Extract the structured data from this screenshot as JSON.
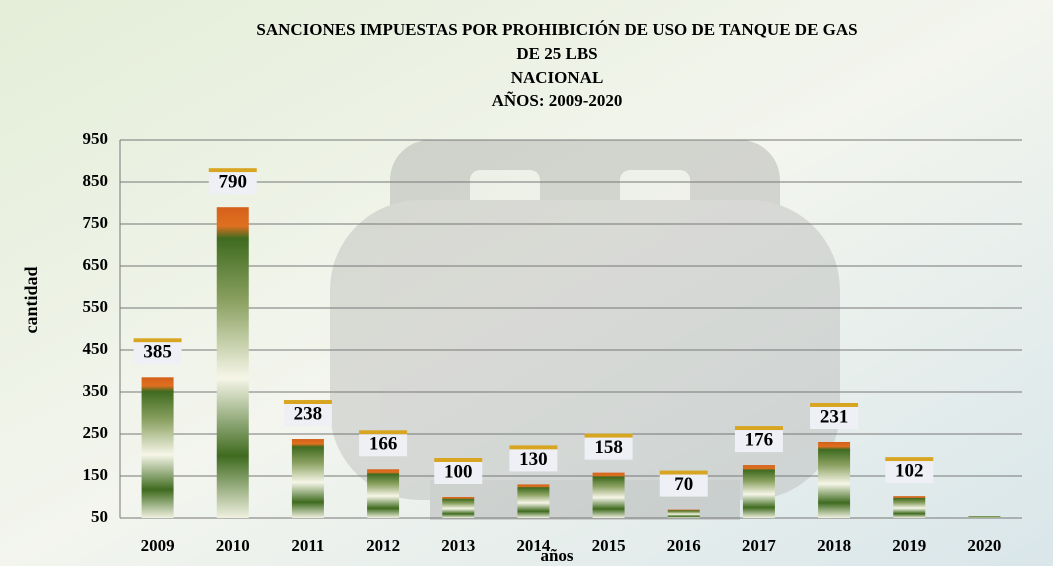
{
  "chart_data": {
    "type": "bar",
    "title": [
      "SANCIONES IMPUESTAS POR PROHIBICIÓN DE USO DE TANQUE DE GAS",
      "DE 25 LBS",
      "NACIONAL",
      "AÑOS: 2009-2020"
    ],
    "x_label": "años",
    "y_label": "cantidad",
    "categories": [
      "2009",
      "2010",
      "2011",
      "2012",
      "2013",
      "2014",
      "2015",
      "2016",
      "2017",
      "2018",
      "2019",
      "2020"
    ],
    "values": [
      385,
      790,
      238,
      166,
      100,
      130,
      158,
      70,
      176,
      231,
      102,
      50
    ],
    "value_labels": [
      "385",
      "790",
      "238",
      "166",
      "100",
      "130",
      "158",
      "70",
      "176",
      "231",
      "102",
      null
    ],
    "ylim": [
      50,
      950
    ],
    "yticks": [
      50,
      150,
      250,
      350,
      450,
      550,
      650,
      750,
      850,
      950
    ],
    "grid": true
  }
}
